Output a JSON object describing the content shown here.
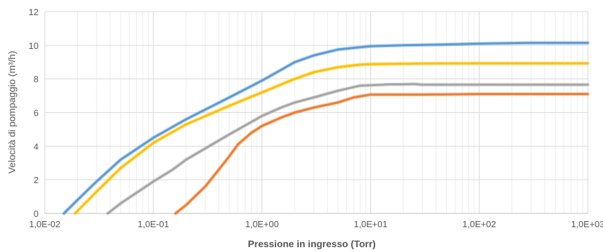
{
  "chart_data": {
    "type": "line",
    "title": "",
    "xlabel": "Pressione in ingresso (Torr)",
    "ylabel": "Velocità di pompaggio (m³/h)",
    "x_scale": "log",
    "xlim": [
      0.01,
      1000
    ],
    "ylim": [
      0,
      12
    ],
    "x_ticks": [
      0.01,
      0.1,
      1,
      10,
      100,
      1000
    ],
    "x_tick_labels": [
      "1,0E-02",
      "1,0E-01",
      "1,0E+00",
      "1,0E+01",
      "1,0E+02",
      "1,0E+03"
    ],
    "y_ticks": [
      0,
      2,
      4,
      6,
      8,
      10,
      12
    ],
    "y_tick_labels": [
      "0",
      "2",
      "4",
      "6",
      "8",
      "10",
      "12"
    ],
    "grid": true,
    "legend": "none",
    "series": [
      {
        "color": "#5b9bd5",
        "points": [
          [
            0.015,
            0.0
          ],
          [
            0.02,
            0.8
          ],
          [
            0.03,
            1.9
          ],
          [
            0.05,
            3.2
          ],
          [
            0.1,
            4.5
          ],
          [
            0.2,
            5.6
          ],
          [
            0.5,
            6.9
          ],
          [
            1,
            7.9
          ],
          [
            2,
            9.0
          ],
          [
            3,
            9.4
          ],
          [
            5,
            9.75
          ],
          [
            10,
            9.95
          ],
          [
            20,
            10.0
          ],
          [
            50,
            10.05
          ],
          [
            100,
            10.1
          ],
          [
            300,
            10.15
          ],
          [
            1000,
            10.15
          ]
        ]
      },
      {
        "color": "#ffc000",
        "points": [
          [
            0.019,
            0.0
          ],
          [
            0.03,
            1.3
          ],
          [
            0.05,
            2.7
          ],
          [
            0.1,
            4.2
          ],
          [
            0.2,
            5.3
          ],
          [
            0.5,
            6.4
          ],
          [
            1,
            7.2
          ],
          [
            2,
            8.0
          ],
          [
            3,
            8.4
          ],
          [
            5,
            8.7
          ],
          [
            8,
            8.85
          ],
          [
            10,
            8.88
          ],
          [
            30,
            8.92
          ],
          [
            100,
            8.93
          ],
          [
            1000,
            8.93
          ]
        ]
      },
      {
        "color": "#a5a5a5",
        "points": [
          [
            0.038,
            0.0
          ],
          [
            0.05,
            0.6
          ],
          [
            0.1,
            1.9
          ],
          [
            0.15,
            2.6
          ],
          [
            0.2,
            3.2
          ],
          [
            0.5,
            4.7
          ],
          [
            1,
            5.8
          ],
          [
            1.5,
            6.3
          ],
          [
            2,
            6.6
          ],
          [
            3,
            6.9
          ],
          [
            5,
            7.3
          ],
          [
            8,
            7.6
          ],
          [
            10,
            7.62
          ],
          [
            15,
            7.68
          ],
          [
            20,
            7.68
          ],
          [
            25,
            7.7
          ],
          [
            30,
            7.66
          ],
          [
            100,
            7.66
          ],
          [
            1000,
            7.66
          ]
        ]
      },
      {
        "color": "#ed7d31",
        "points": [
          [
            0.16,
            0.0
          ],
          [
            0.2,
            0.5
          ],
          [
            0.3,
            1.6
          ],
          [
            0.4,
            2.6
          ],
          [
            0.5,
            3.4
          ],
          [
            0.6,
            4.1
          ],
          [
            0.8,
            4.8
          ],
          [
            1,
            5.2
          ],
          [
            1.5,
            5.7
          ],
          [
            2,
            6.0
          ],
          [
            3,
            6.3
          ],
          [
            5,
            6.6
          ],
          [
            7,
            6.9
          ],
          [
            10,
            7.07
          ],
          [
            30,
            7.07
          ],
          [
            100,
            7.1
          ],
          [
            1000,
            7.1
          ]
        ]
      }
    ]
  }
}
